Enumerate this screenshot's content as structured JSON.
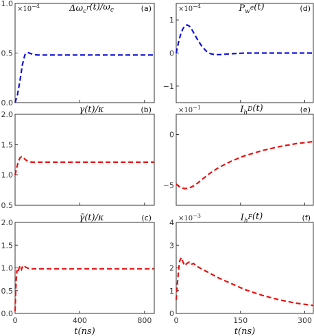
{
  "chart_data": [
    {
      "type": "line",
      "panel": "a",
      "title": "Δω_c^r(t)/ω_c",
      "tag": "(a)",
      "scale": "×10^−4",
      "xlabel": "",
      "xlim": [
        0,
        860
      ],
      "ylim": [
        0,
        1.0
      ],
      "xticks": [
        0,
        400,
        800
      ],
      "xtick_labels": [],
      "yticks": [
        0,
        0.5,
        1.0
      ],
      "ytick_labels": [
        "0.0",
        "0.5",
        "1.0"
      ],
      "series": [
        {
          "color": "#1010dd",
          "dash": "dashed",
          "x": [
            0,
            15,
            30,
            45,
            60,
            75,
            90,
            110,
            140,
            200,
            300,
            500,
            700,
            860
          ],
          "y": [
            0,
            0.08,
            0.22,
            0.38,
            0.48,
            0.505,
            0.5,
            0.485,
            0.48,
            0.48,
            0.48,
            0.48,
            0.48,
            0.48
          ]
        }
      ]
    },
    {
      "type": "line",
      "panel": "b",
      "title": "γ(t)/κ",
      "tag": "(b)",
      "scale": "",
      "xlabel": "",
      "xlim": [
        0,
        860
      ],
      "ylim": [
        0.5,
        2.0
      ],
      "xticks": [
        0,
        400,
        800
      ],
      "xtick_labels": [],
      "yticks": [
        0.5,
        1.0,
        1.5,
        2.0
      ],
      "ytick_labels": [
        "0.5",
        "1.0",
        "1.5",
        "2.0"
      ],
      "series": [
        {
          "color": "#e81010",
          "dash": "dashed",
          "x": [
            0,
            10,
            20,
            30,
            40,
            50,
            60,
            75,
            90,
            110,
            140,
            200,
            400,
            600,
            860
          ],
          "y": [
            1.0,
            1.12,
            1.22,
            1.28,
            1.3,
            1.29,
            1.26,
            1.23,
            1.215,
            1.21,
            1.21,
            1.21,
            1.21,
            1.21,
            1.21
          ]
        }
      ]
    },
    {
      "type": "line",
      "panel": "c",
      "title": "γ̃(t)/κ",
      "tag": "(c)",
      "scale": "",
      "xlabel": "t(ns)",
      "xlim": [
        0,
        860
      ],
      "ylim": [
        0,
        2.0
      ],
      "xticks": [
        0,
        400,
        800
      ],
      "xtick_labels": [
        "0",
        "400",
        "800"
      ],
      "yticks": [
        0,
        0.5,
        1.0,
        1.5,
        2.0
      ],
      "ytick_labels": [
        "0.0",
        "0.5",
        "1.0",
        "1.5",
        "2.0"
      ],
      "series": [
        {
          "color": "#e81010",
          "dash": "dashed",
          "x": [
            0,
            4,
            8,
            12,
            18,
            25,
            32,
            40,
            48,
            56,
            64,
            75,
            90,
            110,
            150,
            250,
            500,
            860
          ],
          "y": [
            0.05,
            0.5,
            0.8,
            0.95,
            0.9,
            1.0,
            1.05,
            0.97,
            1.04,
            1.05,
            1.02,
            1.0,
            0.98,
            0.98,
            0.98,
            0.98,
            0.98,
            0.98
          ]
        }
      ]
    },
    {
      "type": "line",
      "panel": "d",
      "title": "P_w^e(t)",
      "tag": "(d)",
      "scale": "×10^−4",
      "xlabel": "",
      "xlim": [
        0,
        320
      ],
      "ylim": [
        -1.5,
        1.5
      ],
      "xticks": [
        0,
        150,
        300
      ],
      "xtick_labels": [],
      "yticks": [
        -1,
        0,
        1
      ],
      "ytick_labels": [
        "−1",
        "0",
        "1"
      ],
      "series": [
        {
          "color": "#1010dd",
          "dash": "dashed",
          "x": [
            0,
            5,
            10,
            15,
            20,
            25,
            30,
            35,
            40,
            50,
            60,
            70,
            80,
            90,
            100,
            110,
            130,
            160,
            200,
            260,
            320
          ],
          "y": [
            0.0,
            0.3,
            0.55,
            0.72,
            0.82,
            0.85,
            0.82,
            0.75,
            0.63,
            0.4,
            0.2,
            0.06,
            -0.02,
            -0.05,
            -0.05,
            -0.04,
            -0.02,
            0.0,
            0.0,
            0.0,
            0.0
          ]
        }
      ]
    },
    {
      "type": "line",
      "panel": "e",
      "title": "I_h^D(t)",
      "tag": "(e)",
      "scale": "×10^−1",
      "xlabel": "",
      "xlim": [
        0,
        320
      ],
      "ylim": [
        -7,
        2
      ],
      "xticks": [
        0,
        150,
        300
      ],
      "xtick_labels": [],
      "yticks": [
        -5,
        0
      ],
      "ytick_labels": [
        "−5",
        "0"
      ],
      "series": [
        {
          "color": "#e81010",
          "dash": "dashed",
          "x": [
            0,
            10,
            20,
            30,
            40,
            50,
            60,
            80,
            100,
            130,
            160,
            200,
            240,
            280,
            320
          ],
          "y": [
            -4.9,
            -5.25,
            -5.35,
            -5.3,
            -5.1,
            -4.8,
            -4.45,
            -3.8,
            -3.25,
            -2.6,
            -2.1,
            -1.6,
            -1.2,
            -0.9,
            -0.7
          ]
        }
      ]
    },
    {
      "type": "line",
      "panel": "f",
      "title": "I_h^F(t)",
      "tag": "(f)",
      "scale": "×10^−3",
      "xlabel": "t(ns)",
      "xlim": [
        0,
        320
      ],
      "ylim": [
        0,
        4
      ],
      "xticks": [
        0,
        150,
        300
      ],
      "xtick_labels": [
        "0",
        "150",
        "300"
      ],
      "yticks": [
        0,
        1,
        2,
        3,
        4
      ],
      "ytick_labels": [
        "0",
        "1",
        "2",
        "3",
        "4"
      ],
      "series": [
        {
          "color": "#e81010",
          "dash": "dashed",
          "x": [
            0,
            4,
            8,
            12,
            16,
            20,
            25,
            30,
            35,
            40,
            50,
            60,
            80,
            100,
            130,
            160,
            200,
            240,
            280,
            320
          ],
          "y": [
            0.6,
            1.6,
            2.3,
            2.45,
            2.25,
            2.1,
            2.2,
            2.25,
            2.15,
            2.2,
            2.05,
            1.95,
            1.75,
            1.55,
            1.3,
            1.05,
            0.8,
            0.6,
            0.45,
            0.35
          ]
        }
      ]
    }
  ]
}
